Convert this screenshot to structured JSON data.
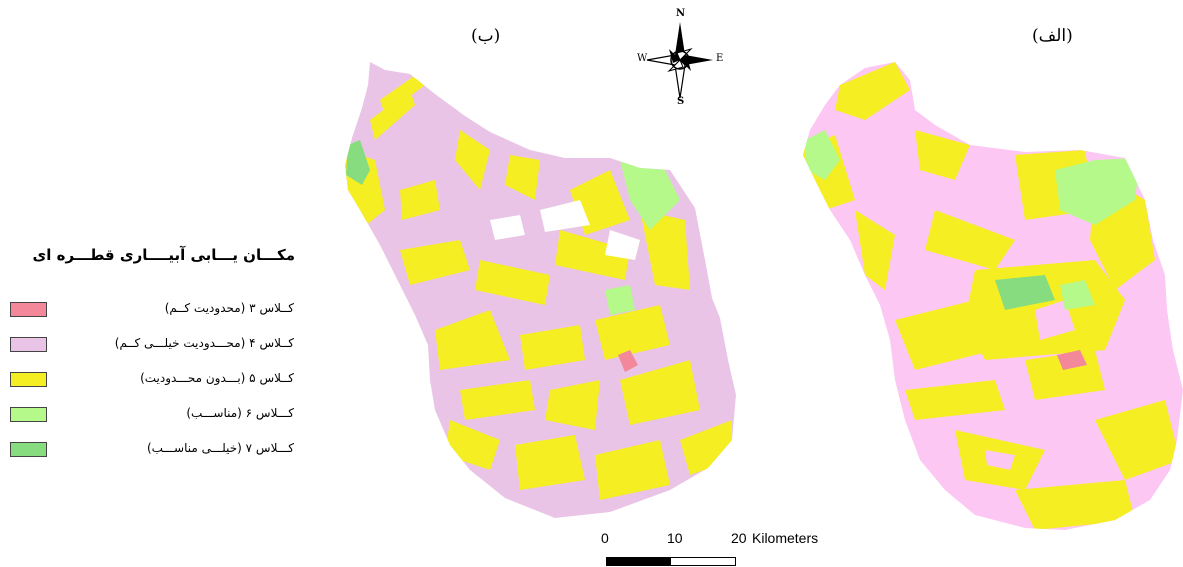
{
  "panels": {
    "left_label": "(ب)",
    "right_label": "(الف)"
  },
  "north_arrow": {
    "icon": "compass-rose-icon",
    "n": "N",
    "s": "S",
    "e": "E",
    "w": "W"
  },
  "legend": {
    "title": "مکـــان یـــابی آبیــــاری قطـــره ای",
    "items": [
      {
        "label": "کــلاس ۳ (محدودیت کــم)",
        "color": "#f2889a"
      },
      {
        "label": "کــلاس ۴ (محـــدودیت خیلـــی کــم)",
        "color": "#e9c4e6"
      },
      {
        "label": "کــلاس ۵ (بـــدون محـــدودیت)",
        "color": "#f5ee22"
      },
      {
        "label": "کـــلاس ۶ (مناســـب)",
        "color": "#b4f98a"
      },
      {
        "label": "کـــلاس ۷ (خیلـــی مناســـب)",
        "color": "#86dc7e"
      }
    ]
  },
  "scale_bar": {
    "ticks": [
      "0",
      "10",
      "20"
    ],
    "unit": "Kilometers"
  },
  "map_colors": {
    "class3": "#f2889a",
    "class4_left": "#e9c4e6",
    "class4_right": "#fdc7f4",
    "class5": "#f5ee22",
    "class6": "#b4f98a",
    "class7": "#86dc7e"
  }
}
